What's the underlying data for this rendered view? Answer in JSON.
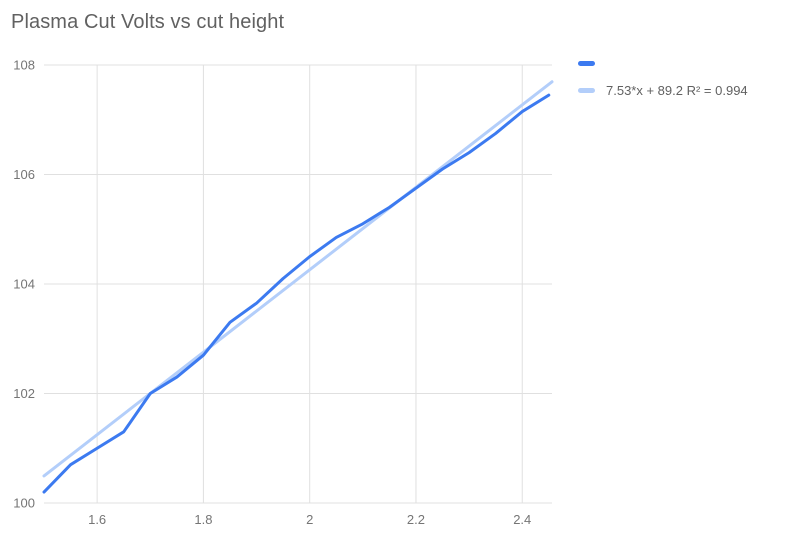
{
  "title": "Plasma Cut Volts vs cut height",
  "colors": {
    "background": "#ffffff",
    "series_blue": "#3c7af0",
    "trendline_blue": "#b3cefa",
    "gridline": "#e0e0e0",
    "axis_text": "#757575",
    "title_text": "#616161",
    "legend_text": "#616161"
  },
  "legend": {
    "items": [
      {
        "label": "",
        "color": "#3c7af0"
      },
      {
        "label": "7.53*x + 89.2 R² = 0.994",
        "color": "#b3cefa"
      }
    ]
  },
  "chart_data": {
    "type": "line",
    "title": "Plasma Cut Volts vs cut height",
    "xlabel": "",
    "ylabel": "",
    "xlim": [
      1.5,
      2.456
    ],
    "ylim": [
      100,
      108
    ],
    "grid": true,
    "legend_position": "right",
    "x_ticks": [
      1.6,
      1.8,
      2,
      2.2,
      2.4
    ],
    "x_tick_labels": [
      "1.6",
      "1.8",
      "2",
      "2.2",
      "2.4"
    ],
    "y_ticks": [
      100,
      102,
      104,
      106,
      108
    ],
    "y_tick_labels": [
      "100",
      "102",
      "104",
      "106",
      "108"
    ],
    "x": [
      1.5,
      1.55,
      1.6,
      1.65,
      1.7,
      1.75,
      1.8,
      1.85,
      1.9,
      1.95,
      2.0,
      2.05,
      2.1,
      2.15,
      2.2,
      2.25,
      2.3,
      2.35,
      2.4,
      2.45
    ],
    "series": [
      {
        "name": "",
        "color": "#3c7af0",
        "values": [
          100.2,
          100.7,
          101.0,
          101.3,
          102.0,
          102.3,
          102.7,
          103.3,
          103.65,
          104.1,
          104.5,
          104.85,
          105.1,
          105.4,
          105.75,
          106.1,
          106.4,
          106.75,
          107.15,
          107.45
        ]
      }
    ],
    "trendline": {
      "label": "7.53*x + 89.2 R² = 0.994",
      "slope": 7.53,
      "intercept": 89.2,
      "r_squared": 0.994,
      "color": "#b3cefa"
    }
  }
}
